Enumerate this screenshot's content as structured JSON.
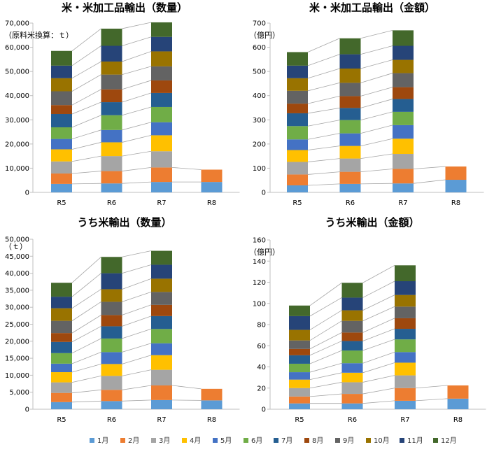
{
  "colors": [
    "#5B9BD5",
    "#ED7D31",
    "#A5A5A5",
    "#FFC000",
    "#4472C4",
    "#70AD47",
    "#255E91",
    "#9E480E",
    "#636363",
    "#997300",
    "#264478",
    "#43682B"
  ],
  "legend": [
    "1月",
    "2月",
    "3月",
    "4月",
    "5月",
    "6月",
    "7月",
    "8月",
    "9月",
    "10月",
    "11月",
    "12月"
  ],
  "chart_data": [
    {
      "type": "bar",
      "stacked": true,
      "title": "米・米加工品輸出（数量）",
      "unit": "（原料米換算：ｔ）",
      "categories": [
        "R5",
        "R6",
        "R7",
        "R8"
      ],
      "ylim": [
        0,
        70000
      ],
      "yticks": [
        "0",
        "10,000",
        "20,000",
        "30,000",
        "40,000",
        "50,000",
        "60,000",
        "70,000"
      ],
      "series": [
        {
          "name": "1月",
          "values": [
            3500,
            3700,
            4300,
            4300
          ]
        },
        {
          "name": "2月",
          "values": [
            4300,
            5100,
            6000,
            5100
          ]
        },
        {
          "name": "3月",
          "values": [
            5000,
            6200,
            6700,
            null
          ]
        },
        {
          "name": "4月",
          "values": [
            5000,
            5700,
            6600,
            null
          ]
        },
        {
          "name": "5月",
          "values": [
            4300,
            5100,
            5400,
            null
          ]
        },
        {
          "name": "6月",
          "values": [
            4800,
            6100,
            6300,
            null
          ]
        },
        {
          "name": "7月",
          "values": [
            5500,
            5400,
            5800,
            null
          ]
        },
        {
          "name": "8月",
          "values": [
            3700,
            5300,
            5200,
            null
          ]
        },
        {
          "name": "9月",
          "values": [
            5700,
            6100,
            5800,
            null
          ]
        },
        {
          "name": "10月",
          "values": [
            5400,
            5400,
            6200,
            null
          ]
        },
        {
          "name": "11月",
          "values": [
            5200,
            6500,
            6000,
            null
          ]
        },
        {
          "name": "12月",
          "values": [
            6100,
            7100,
            6000,
            null
          ]
        }
      ]
    },
    {
      "type": "bar",
      "stacked": true,
      "title": "米・米加工品輸出（金額）",
      "unit": "（億円）",
      "categories": [
        "R5",
        "R6",
        "R7",
        "R8"
      ],
      "ylim": [
        0,
        700
      ],
      "yticks": [
        "0",
        "100",
        "200",
        "300",
        "400",
        "500",
        "600",
        "700"
      ],
      "series": [
        {
          "name": "1月",
          "values": [
            29,
            35,
            37,
            52
          ]
        },
        {
          "name": "2月",
          "values": [
            45,
            50,
            60,
            55
          ]
        },
        {
          "name": "3月",
          "values": [
            52,
            55,
            62,
            null
          ]
        },
        {
          "name": "4月",
          "values": [
            49,
            52,
            63,
            null
          ]
        },
        {
          "name": "5月",
          "values": [
            44,
            52,
            56,
            null
          ]
        },
        {
          "name": "6月",
          "values": [
            55,
            55,
            55,
            null
          ]
        },
        {
          "name": "7月",
          "values": [
            53,
            50,
            53,
            null
          ]
        },
        {
          "name": "8月",
          "values": [
            40,
            49,
            49,
            null
          ]
        },
        {
          "name": "9月",
          "values": [
            53,
            55,
            58,
            null
          ]
        },
        {
          "name": "10月",
          "values": [
            52,
            59,
            55,
            null
          ]
        },
        {
          "name": "11月",
          "values": [
            52,
            59,
            58,
            null
          ]
        },
        {
          "name": "12月",
          "values": [
            56,
            66,
            64,
            null
          ]
        }
      ]
    },
    {
      "type": "bar",
      "stacked": true,
      "title": "うち米輸出（数量）",
      "unit": "（ｔ）",
      "categories": [
        "R5",
        "R6",
        "R7",
        "R8"
      ],
      "ylim": [
        0,
        50000
      ],
      "yticks": [
        "0",
        "5,000",
        "10,000",
        "15,000",
        "20,000",
        "25,000",
        "30,000",
        "35,000",
        "40,000",
        "45,000",
        "50,000"
      ],
      "series": [
        {
          "name": "1月",
          "values": [
            2100,
            2400,
            2700,
            2600
          ]
        },
        {
          "name": "2月",
          "values": [
            2700,
            3300,
            4300,
            3400
          ]
        },
        {
          "name": "3月",
          "values": [
            3100,
            4100,
            4600,
            null
          ]
        },
        {
          "name": "4月",
          "values": [
            3000,
            3500,
            4300,
            null
          ]
        },
        {
          "name": "5月",
          "values": [
            2500,
            3500,
            3500,
            null
          ]
        },
        {
          "name": "6月",
          "values": [
            3100,
            4000,
            4200,
            null
          ]
        },
        {
          "name": "7月",
          "values": [
            3300,
            3600,
            3800,
            null
          ]
        },
        {
          "name": "8月",
          "values": [
            2600,
            3300,
            3300,
            null
          ]
        },
        {
          "name": "9月",
          "values": [
            3600,
            3900,
            3800,
            null
          ]
        },
        {
          "name": "10月",
          "values": [
            3700,
            3700,
            3900,
            null
          ]
        },
        {
          "name": "11月",
          "values": [
            3400,
            4700,
            4100,
            null
          ]
        },
        {
          "name": "12月",
          "values": [
            4100,
            4800,
            4100,
            null
          ]
        }
      ]
    },
    {
      "type": "bar",
      "stacked": true,
      "title": "うち米輸出（金額）",
      "unit": "（億円）",
      "categories": [
        "R5",
        "R6",
        "R7",
        "R8"
      ],
      "ylim": [
        0,
        160
      ],
      "yticks": [
        "0",
        "20",
        "40",
        "60",
        "80",
        "100",
        "120",
        "140",
        "160"
      ],
      "series": [
        {
          "name": "1月",
          "values": [
            5.5,
            5.5,
            8,
            10
          ]
        },
        {
          "name": "2月",
          "values": [
            6.5,
            9,
            12,
            12.5
          ]
        },
        {
          "name": "3月",
          "values": [
            8,
            11,
            12,
            null
          ]
        },
        {
          "name": "4月",
          "values": [
            8,
            9,
            12,
            null
          ]
        },
        {
          "name": "5月",
          "values": [
            7,
            9,
            10,
            null
          ]
        },
        {
          "name": "6月",
          "values": [
            8,
            12,
            12,
            null
          ]
        },
        {
          "name": "7月",
          "values": [
            8,
            9,
            10,
            null
          ]
        },
        {
          "name": "8月",
          "values": [
            6,
            8,
            10,
            null
          ]
        },
        {
          "name": "9月",
          "values": [
            8,
            11,
            11,
            null
          ]
        },
        {
          "name": "10月",
          "values": [
            10,
            10,
            11,
            null
          ]
        },
        {
          "name": "11月",
          "values": [
            13,
            12,
            13,
            null
          ]
        },
        {
          "name": "12月",
          "values": [
            10,
            14,
            15,
            null
          ]
        }
      ]
    }
  ]
}
